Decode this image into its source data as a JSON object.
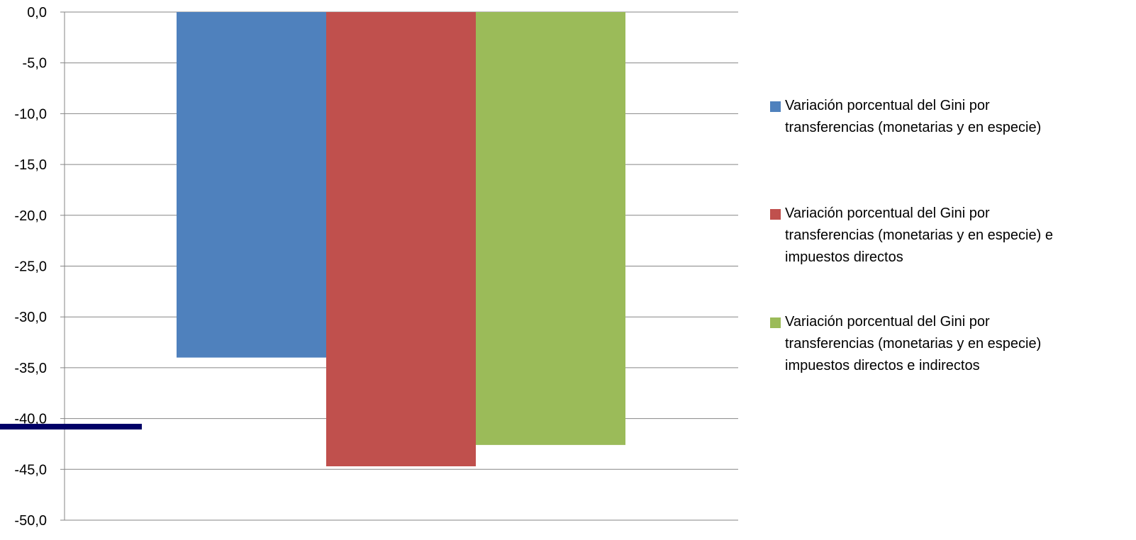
{
  "chart_data": {
    "type": "bar",
    "categories": [
      ""
    ],
    "ylim": [
      -50,
      0
    ],
    "yticks": [
      0,
      -5,
      -10,
      -15,
      -20,
      -25,
      -30,
      -35,
      -40,
      -45,
      -50
    ],
    "ytick_labels": [
      "0,0",
      "-5,0",
      "-10,0",
      "-15,0",
      "-20,0",
      "-25,0",
      "-30,0",
      "-35,0",
      "-40,0",
      "-45,0",
      "-50,0"
    ],
    "grid": true,
    "legend_position": "right",
    "series": [
      {
        "name": "Variación porcentual del Gini por transferencias (monetarias y en especie)",
        "legend_lines": [
          "Variación porcentual del Gini por",
          "transferencias (monetarias y en especie)"
        ],
        "values": [
          -34.0
        ],
        "color": "#4F81BD"
      },
      {
        "name": "Variación porcentual del Gini por transferencias (monetarias y en especie) e impuestos directos",
        "legend_lines": [
          "Variación porcentual del Gini por",
          "transferencias (monetarias y en especie) e",
          "impuestos directos"
        ],
        "values": [
          -44.7
        ],
        "color": "#C0504D"
      },
      {
        "name": "Variación porcentual del Gini por transferencias (monetarias y en especie) impuestos directos e indirectos",
        "legend_lines": [
          "Variación porcentual del Gini por",
          "transferencias (monetarias y en especie)",
          "impuestos directos e indirectos"
        ],
        "values": [
          -42.6
        ],
        "color": "#9BBB59"
      }
    ],
    "marker_line": {
      "y": -40.8,
      "color": "#000066"
    }
  }
}
